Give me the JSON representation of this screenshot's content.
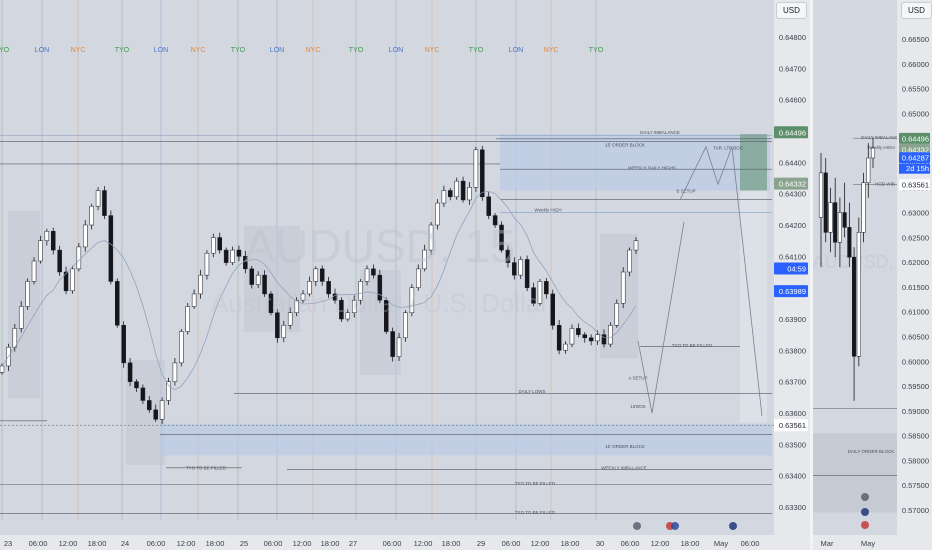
{
  "currency_button": "USD",
  "currency_button_side": "USD",
  "watermark": {
    "symbol": "AUDUSD, 15",
    "name": "Australian Dollar / U.S. Dollar"
  },
  "watermark_side": "AUDUSD, 1W",
  "session_labels": [
    "TYO",
    "LON",
    "NYC",
    "TYO",
    "LON",
    "NYC",
    "TYO",
    "LON",
    "NYC",
    "TYO",
    "LON",
    "NYC",
    "TYO",
    "LON",
    "NYC",
    "TYO"
  ],
  "session_colors": {
    "TYO": "#3f9a52",
    "LON": "#4a74c8",
    "NYC": "#e08a3c"
  },
  "colors": {
    "up": "#ffffff",
    "down": "#14161b",
    "zone": "#b9cbe6",
    "current": "#2962ff",
    "target": "#5c8f6a"
  },
  "annotations": {
    "daily_imbalance": "DAILY IMBALANCE",
    "ob_top": "15' ORDER BLOCK",
    "weekly_daily_highs": "WEEKLY DAILY HIGHS",
    "b_setup": "B SETUP",
    "weekly_high": "Weekly HIGH",
    "tar_ltf_bos": "TAR. LTF BOS",
    "tyo_filled_upper": "TYO TO BE FILLED",
    "daily_lows": "DAILY LOWS",
    "a_setup": "A SETUP",
    "bos_15": "15'BOS",
    "ob_bottom": "15' ORDER BLOCK",
    "tyo_filled_lower": "TYO TO BE FILLED",
    "weekly_imbalance": "WEEKLY IMBALANCE",
    "tyo_filled_1": "TYO TO BE FILLED",
    "tyo_filled_2": "TYO TO BE FILLED",
    "side_daily_imb": "DAILY IMBALANCE",
    "side_weekly_hi": "Weekly HIGH",
    "side_hod": "HOD WIB",
    "side_daily_ob": "DAILY ORDER BLOCK"
  },
  "price_badges": {
    "weekly_high": "0.64496",
    "target": "0.64332",
    "countdown": "04:59",
    "current": "0.63989",
    "low_line": "0.63561"
  },
  "side_badges": {
    "b1": "0.64496",
    "b2": "0.64332",
    "b3": "0.64287",
    "b3_timer": "2d 15h",
    "b4": "0.63561"
  },
  "chart_data": [
    {
      "type": "candlestick",
      "title": "AUDUSD, 15",
      "timeframe": "15",
      "y_ticks": [
        "0.64800",
        "0.64700",
        "0.64600",
        "0.64500",
        "0.64400",
        "0.64300",
        "0.64200",
        "0.64100",
        "0.64000",
        "0.63900",
        "0.63800",
        "0.63700",
        "0.63600",
        "0.63500",
        "0.63400",
        "0.63300"
      ],
      "ylim": [
        0.6326,
        0.6489
      ],
      "x_ticks": [
        "23",
        "06:00",
        "12:00",
        "18:00",
        "24",
        "06:00",
        "12:00",
        "18:00",
        "25",
        "06:00",
        "12:00",
        "18:00",
        "27",
        "06:00",
        "12:00",
        "18:00",
        "29",
        "06:00",
        "12:00",
        "18:00",
        "30",
        "06:00",
        "12:00",
        "18:00",
        "May",
        "06:00"
      ],
      "closes": [
        0.6375,
        0.6381,
        0.6387,
        0.6394,
        0.6402,
        0.64085,
        0.6415,
        0.6418,
        0.6412,
        0.6405,
        0.6399,
        0.6406,
        0.6413,
        0.642,
        0.6426,
        0.6431,
        0.6423,
        0.6402,
        0.6388,
        0.6376,
        0.637,
        0.6368,
        0.6364,
        0.6361,
        0.6358,
        0.6364,
        0.637,
        0.6376,
        0.6386,
        0.6394,
        0.6398,
        0.6404,
        0.6411,
        0.6416,
        0.6412,
        0.6408,
        0.6412,
        0.641,
        0.6406,
        0.6401,
        0.6404,
        0.6398,
        0.6392,
        0.6384,
        0.6388,
        0.6392,
        0.6396,
        0.6398,
        0.6402,
        0.6406,
        0.6402,
        0.6398,
        0.6396,
        0.639,
        0.6392,
        0.6396,
        0.6402,
        0.6406,
        0.6404,
        0.6396,
        0.6386,
        0.6378,
        0.6384,
        0.6392,
        0.64,
        0.6406,
        0.6412,
        0.642,
        0.6427,
        0.6431,
        0.6429,
        0.6434,
        0.6428,
        0.6432,
        0.6444,
        0.6429,
        0.6423,
        0.642,
        0.6412,
        0.6408,
        0.6404,
        0.6409,
        0.64,
        0.6395,
        0.6402,
        0.6398,
        0.6388,
        0.638,
        0.6382,
        0.6387,
        0.6385,
        0.6384,
        0.6383,
        0.6385,
        0.6382,
        0.6388,
        0.6395,
        0.6405,
        0.6412,
        0.6415
      ]
    },
    {
      "type": "candlestick",
      "title": "AUDUSD, 1W",
      "timeframe": "1W",
      "y_ticks": [
        "0.66500",
        "0.66000",
        "0.65500",
        "0.65000",
        "0.64500",
        "0.64000",
        "0.63500",
        "0.63000",
        "0.62500",
        "0.62000",
        "0.61500",
        "0.61000",
        "0.60500",
        "0.60000",
        "0.59500",
        "0.59000",
        "0.58500",
        "0.58000",
        "0.57500",
        "0.57000"
      ],
      "ylim": [
        0.5686,
        0.6683
      ],
      "x_ticks": [
        "Mar",
        "May"
      ],
      "candles": [
        [
          0.629,
          0.642,
          0.619,
          0.638
        ],
        [
          0.638,
          0.641,
          0.624,
          0.626
        ],
        [
          0.626,
          0.635,
          0.622,
          0.632
        ],
        [
          0.632,
          0.637,
          0.621,
          0.624
        ],
        [
          0.624,
          0.633,
          0.619,
          0.63
        ],
        [
          0.63,
          0.636,
          0.625,
          0.627
        ],
        [
          0.627,
          0.632,
          0.619,
          0.621
        ],
        [
          0.621,
          0.623,
          0.592,
          0.601
        ],
        [
          0.601,
          0.629,
          0.599,
          0.626
        ],
        [
          0.626,
          0.638,
          0.624,
          0.636
        ],
        [
          0.636,
          0.644,
          0.633,
          0.641
        ],
        [
          0.641,
          0.645,
          0.639,
          0.643
        ]
      ]
    }
  ]
}
